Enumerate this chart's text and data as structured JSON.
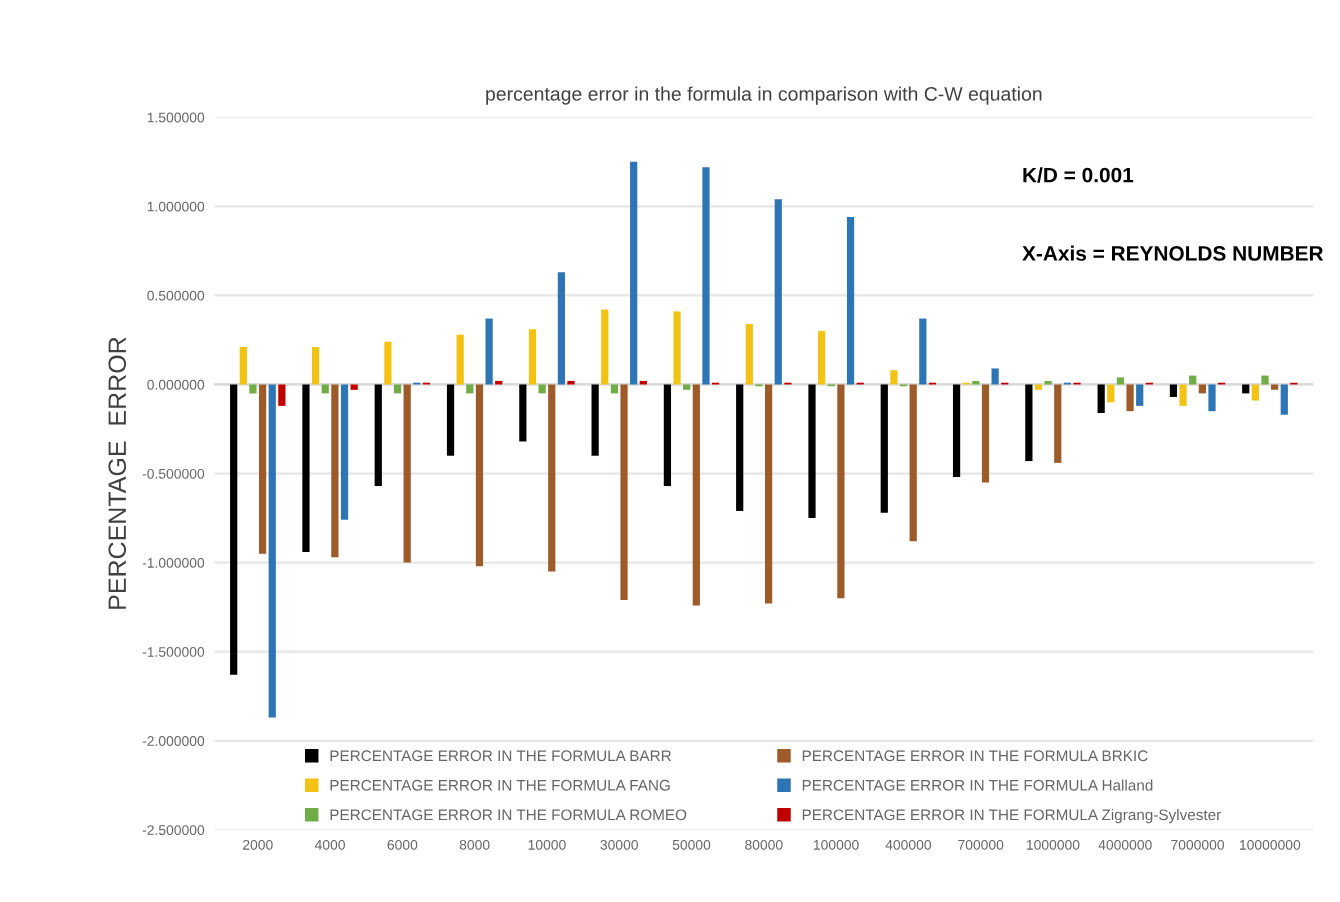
{
  "chart_data": {
    "type": "bar",
    "title": "percentage error in the formula in comparison with C-W equation",
    "ylabel": "PERCENTAGE  ERROR",
    "annotations": [
      "K/D = 0.001",
      "X-Axis = REYNOLDS NUMBER"
    ],
    "categories": [
      "2000",
      "4000",
      "6000",
      "8000",
      "10000",
      "30000",
      "50000",
      "80000",
      "100000",
      "400000",
      "700000",
      "1000000",
      "4000000",
      "7000000",
      "10000000"
    ],
    "ylim": [
      -2.5,
      1.5
    ],
    "yticks": [
      {
        "value": -2.5,
        "label": "-2.500000"
      },
      {
        "value": -2,
        "label": "-2.000000"
      },
      {
        "value": -1.5,
        "label": "-1.500000"
      },
      {
        "value": -1,
        "label": "-1.000000"
      },
      {
        "value": -0.5,
        "label": "-0.500000"
      },
      {
        "value": 0,
        "label": "0.000000"
      },
      {
        "value": 0.5,
        "label": "0.500000"
      },
      {
        "value": 1,
        "label": "1.000000"
      },
      {
        "value": 1.5,
        "label": "1.500000"
      }
    ],
    "grid": "y",
    "legend": "bottom",
    "series": [
      {
        "name": "PERCENTAGE ERROR IN THE FORMULA BARR",
        "color": "#000000",
        "values": [
          -1.63,
          -0.94,
          -0.57,
          -0.4,
          -0.32,
          -0.4,
          -0.57,
          -0.71,
          -0.75,
          -0.72,
          -0.52,
          -0.43,
          -0.16,
          -0.07,
          -0.05
        ]
      },
      {
        "name": "PERCENTAGE ERROR IN THE FORMULA FANG",
        "color": "#f2c314",
        "values": [
          0.21,
          0.21,
          0.24,
          0.28,
          0.31,
          0.42,
          0.41,
          0.34,
          0.3,
          0.08,
          0.01,
          -0.03,
          -0.1,
          -0.12,
          -0.09
        ]
      },
      {
        "name": "PERCENTAGE ERROR IN THE FORMULA ROMEO",
        "color": "#70ad47",
        "values": [
          -0.05,
          -0.05,
          -0.05,
          -0.05,
          -0.05,
          -0.05,
          -0.03,
          -0.01,
          -0.01,
          -0.01,
          0.02,
          0.02,
          0.04,
          0.05,
          0.05
        ]
      },
      {
        "name": "PERCENTAGE ERROR IN THE FORMULA BRKIC",
        "color": "#9e5b2a",
        "values": [
          -0.95,
          -0.97,
          -1.0,
          -1.02,
          -1.05,
          -1.21,
          -1.24,
          -1.23,
          -1.2,
          -0.88,
          -0.55,
          -0.44,
          -0.15,
          -0.05,
          -0.03
        ]
      },
      {
        "name": "PERCENTAGE ERROR IN THE FORMULA Halland",
        "color": "#2e75b6",
        "values": [
          -1.87,
          -0.76,
          0.01,
          0.37,
          0.63,
          1.25,
          1.22,
          1.04,
          0.94,
          0.37,
          0.09,
          0.01,
          -0.12,
          -0.15,
          -0.17
        ]
      },
      {
        "name": "PERCENTAGE ERROR IN THE FORMULA Zigrang-Sylvester",
        "color": "#c00000",
        "values": [
          -0.12,
          -0.03,
          0.01,
          0.02,
          0.02,
          0.02,
          0.01,
          0.01,
          0.01,
          0.01,
          0.01,
          0.01,
          0.01,
          0.01,
          0.01
        ]
      }
    ]
  }
}
